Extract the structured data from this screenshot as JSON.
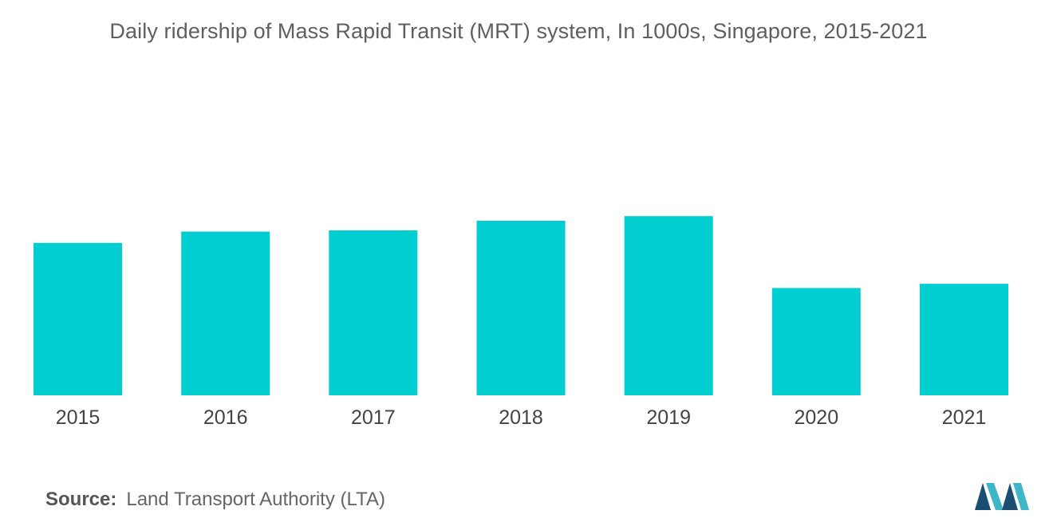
{
  "chart_data": {
    "type": "bar",
    "title": "Daily ridership of Mass Rapid Transit (MRT) system, In 1000s, Singapore, 2015-2021",
    "categories": [
      "2015",
      "2016",
      "2017",
      "2018",
      "2019",
      "2020",
      "2021"
    ],
    "values": [
      3095,
      3325,
      3350,
      3545,
      3640,
      2180,
      2265
    ],
    "ylim": [
      0,
      6800
    ],
    "grid": false,
    "bar_color": "#00ced1"
  },
  "source": {
    "label": "Source:",
    "text": "Land Transport Authority (LTA)"
  },
  "logo": {
    "icon": "mordor-intelligence-logo",
    "colors": [
      "#1b4f72",
      "#3fb6c8"
    ]
  }
}
